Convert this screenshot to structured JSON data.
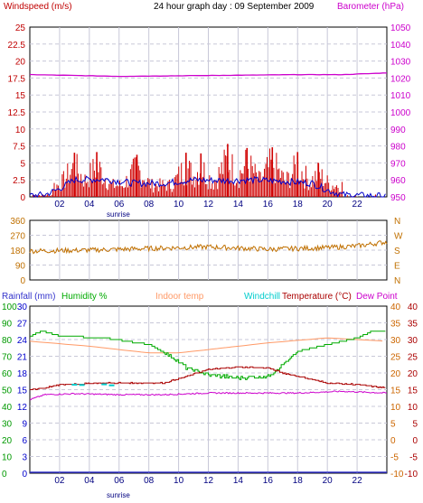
{
  "header": {
    "title": "24 hour graph day : 09 September 2009",
    "left_label": "Windspeed (m/s)",
    "right_label": "Barometer (hPa)",
    "sunrise": "sunrise"
  },
  "direction_panel": {
    "left_ticks": [
      "360",
      "270",
      "180",
      "90",
      "0"
    ],
    "compass": [
      "N",
      "W",
      "S",
      "E",
      "N"
    ]
  },
  "bottom_legend": {
    "rainfall": "Rainfall (mm)",
    "humidity": "Humidity %",
    "indoor": "Indoor temp",
    "windchill": "Windchill",
    "temperature": "Temperature (°C)",
    "dewpoint": "Dew Point"
  },
  "colors": {
    "windspeed_label": "#c00000",
    "barometer": "#cc00cc",
    "gust": "#d00000",
    "wind_avg": "#0000cc",
    "direction": "#c07000",
    "rainfall": "#3333cc",
    "humidity": "#00aa00",
    "indoor": "#ff9966",
    "windchill": "#00cccc",
    "temperature": "#aa0000",
    "dewpoint": "#cc00cc",
    "temp_axis": "#cc6600",
    "rain_axis": "#0000cc",
    "humidity_axis": "#009900"
  },
  "chart_data": [
    {
      "type": "bar",
      "name": "wind",
      "x_ticks": [
        "02",
        "04",
        "06",
        "08",
        "10",
        "12",
        "14",
        "16",
        "18",
        "20",
        "22"
      ],
      "left_ticks": [
        "25",
        "22.5",
        "20",
        "17.5",
        "15",
        "12.5",
        "10",
        "7.5",
        "5",
        "2.5",
        "0"
      ],
      "right_ticks": [
        "1050",
        "1040",
        "1030",
        "1020",
        "1010",
        "1000",
        "990",
        "980",
        "970",
        "960",
        "950"
      ],
      "ylim_left": [
        0,
        25
      ],
      "ylim_right": [
        950,
        1050
      ],
      "xlim": [
        0,
        24
      ],
      "barometer": {
        "x": [
          0,
          6,
          12,
          18,
          21,
          24
        ],
        "y": [
          1022,
          1021,
          1021.5,
          1022,
          1022,
          1023
        ]
      },
      "gust_peaks": {
        "x": [
          3,
          4.5,
          7.2,
          10.5,
          11.5,
          13.3,
          14.6,
          16.3,
          18.0,
          19.4
        ],
        "y": [
          6.5,
          6.6,
          6.2,
          6.5,
          6.4,
          7.8,
          7.2,
          7.3,
          6.6,
          5.0
        ]
      },
      "wind_avg": {
        "x": [
          0,
          1,
          2,
          3,
          5,
          7,
          9,
          11,
          13,
          15,
          17,
          19,
          20,
          21,
          24
        ],
        "y": [
          0.2,
          0.3,
          1.2,
          2.5,
          2.6,
          2.0,
          2.0,
          2.5,
          2.4,
          2.5,
          2.3,
          2.0,
          1.0,
          0.3,
          0.1
        ]
      }
    },
    {
      "type": "line",
      "name": "wind-direction",
      "ylim": [
        0,
        360
      ],
      "xlim": [
        0,
        24
      ],
      "direction": {
        "x": [
          0,
          4,
          8,
          12,
          16,
          20,
          22,
          24
        ],
        "y": [
          175,
          180,
          190,
          200,
          185,
          195,
          205,
          230
        ]
      }
    },
    {
      "type": "line",
      "name": "temperature-humidity",
      "x_ticks": [
        "02",
        "04",
        "06",
        "08",
        "10",
        "12",
        "14",
        "16",
        "18",
        "20",
        "22"
      ],
      "rain_ticks": [
        "30",
        "27",
        "24",
        "21",
        "18",
        "15",
        "12",
        "9",
        "6",
        "3",
        "0"
      ],
      "humidity_ticks": [
        "100",
        "90",
        "80",
        "70",
        "60",
        "50",
        "40",
        "30",
        "20",
        "10",
        "0"
      ],
      "temp_ticks": [
        "40",
        "35",
        "30",
        "25",
        "20",
        "15",
        "10",
        "5",
        "0",
        "-5",
        "-10"
      ],
      "temp_right_ticks": [
        "40",
        "35",
        "30",
        "25",
        "20",
        "15",
        "10",
        "5",
        "0",
        "-5",
        "-10"
      ],
      "ylim_temp": [
        -10,
        40
      ],
      "xlim": [
        0,
        24
      ],
      "humidity": {
        "x": [
          0,
          0.8,
          2,
          5,
          8,
          9.5,
          10.5,
          12,
          14,
          16,
          17,
          18,
          20,
          22,
          23,
          24
        ],
        "y": [
          82,
          85,
          82,
          81,
          77,
          70,
          63,
          59,
          57,
          58,
          65,
          73,
          77,
          81,
          85,
          85
        ]
      },
      "indoor": {
        "x": [
          0,
          4,
          8,
          10,
          12,
          16,
          20,
          24
        ],
        "y": [
          29.5,
          28,
          26,
          26,
          27,
          29,
          30.5,
          29.5
        ]
      },
      "temperature": {
        "x": [
          0,
          1,
          2,
          5,
          8,
          9,
          10.5,
          12,
          14,
          16,
          17,
          20,
          22,
          24
        ],
        "y": [
          15,
          15.5,
          16.5,
          17,
          17,
          17,
          19,
          21,
          21.8,
          21.5,
          20,
          17,
          16.5,
          15.5
        ]
      },
      "dewpoint": {
        "x": [
          0,
          1,
          3,
          6,
          9,
          12,
          15,
          18,
          21,
          24
        ],
        "y": [
          12,
          13.5,
          13.8,
          13.5,
          13.5,
          14,
          14,
          14,
          14.5,
          14
        ]
      },
      "windchill": {
        "x": [
          3,
          3.5,
          5,
          5.5
        ],
        "y": [
          16.5,
          16.4,
          16.6,
          16.3
        ]
      },
      "rainfall": {
        "x": [
          0,
          24
        ],
        "y": [
          0,
          0
        ]
      }
    }
  ]
}
